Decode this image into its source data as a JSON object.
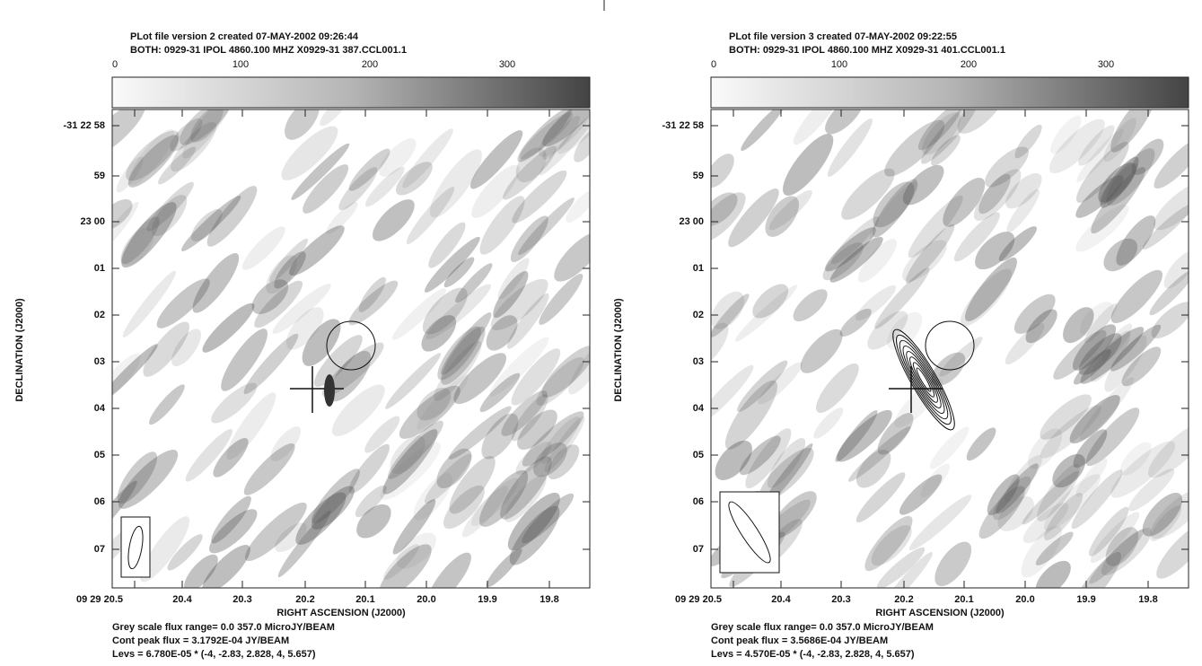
{
  "panels": [
    {
      "header": [
        "PLot file version 2  created 07-MAY-2002 09:26:44",
        "BOTH: 0929-31  IPOL  4860.100 MHZ  X0929-31 387.CCL001.1"
      ],
      "colorbar_ticks": [
        "0",
        "100",
        "200",
        "300"
      ],
      "y_ticks": [
        "-31 22 58",
        "59",
        "23 00",
        "01",
        "02",
        "03",
        "04",
        "05",
        "06",
        "07"
      ],
      "x_ticks": [
        "09 29 20.5",
        "20.4",
        "20.3",
        "20.2",
        "20.1",
        "20.0",
        "19.9",
        "19.8"
      ],
      "x_label": "RIGHT ASCENSION (J2000)",
      "y_label": "DECLINATION (J2000)",
      "footer": [
        "Grey scale flux range= 0.0 357.0 MicroJY/BEAM",
        "Cont peak flux =  3.1792E-04 JY/BEAM",
        "Levs = 6.780E-05 * (-4, -2.83, 2.828, 4, 5.657)"
      ]
    },
    {
      "header": [
        "PLot file version 3  created 07-MAY-2002 09:22:55",
        "BOTH: 0929-31  IPOL  4860.100 MHZ  X0929-31 401.CCL001.1"
      ],
      "colorbar_ticks": [
        "0",
        "100",
        "200",
        "300"
      ],
      "y_ticks": [
        "-31 22 58",
        "59",
        "23 00",
        "01",
        "02",
        "03",
        "04",
        "05",
        "06",
        "07"
      ],
      "x_ticks": [
        "09 29 20.5",
        "20.4",
        "20.3",
        "20.2",
        "20.1",
        "20.0",
        "19.9",
        "19.8"
      ],
      "x_label": "RIGHT ASCENSION (J2000)",
      "y_label": "DECLINATION (J2000)",
      "footer": [
        "Grey scale flux range= 0.0 357.0 MicroJY/BEAM",
        "Cont peak flux =  3.5686E-04 JY/BEAM",
        "Levs = 4.570E-05 * (-4, -2.83, 2.828, 4, 5.657)"
      ]
    }
  ]
}
